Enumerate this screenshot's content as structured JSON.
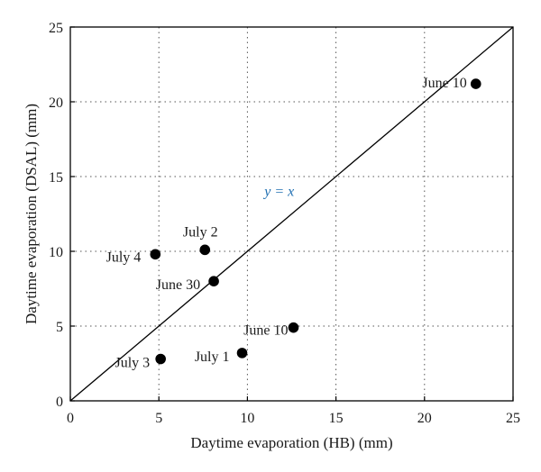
{
  "chart_data": {
    "type": "scatter",
    "title": "",
    "xlabel": "Daytime evaporation (HB) (mm)",
    "ylabel": "Daytime evaporation (DSAL) (mm)",
    "xlim": [
      0,
      25
    ],
    "ylim": [
      0,
      25
    ],
    "xticks": [
      0,
      5,
      10,
      15,
      20,
      25
    ],
    "yticks": [
      0,
      5,
      10,
      15,
      20,
      25
    ],
    "grid": true,
    "grid_style": "dotted",
    "points": [
      {
        "label": "June 10",
        "x": 22.9,
        "y": 21.2
      },
      {
        "label": "July 2",
        "x": 7.6,
        "y": 10.1
      },
      {
        "label": "July 4",
        "x": 4.8,
        "y": 9.8
      },
      {
        "label": "June 30",
        "x": 8.1,
        "y": 8.0
      },
      {
        "label": "June 10",
        "x": 12.6,
        "y": 4.9
      },
      {
        "label": "July 1",
        "x": 9.7,
        "y": 3.2
      },
      {
        "label": "July 3",
        "x": 5.1,
        "y": 2.8
      }
    ],
    "reference_line": {
      "label": "y = x",
      "from": [
        0,
        0
      ],
      "to": [
        25,
        25
      ],
      "label_color": "#1f6fb2"
    }
  }
}
